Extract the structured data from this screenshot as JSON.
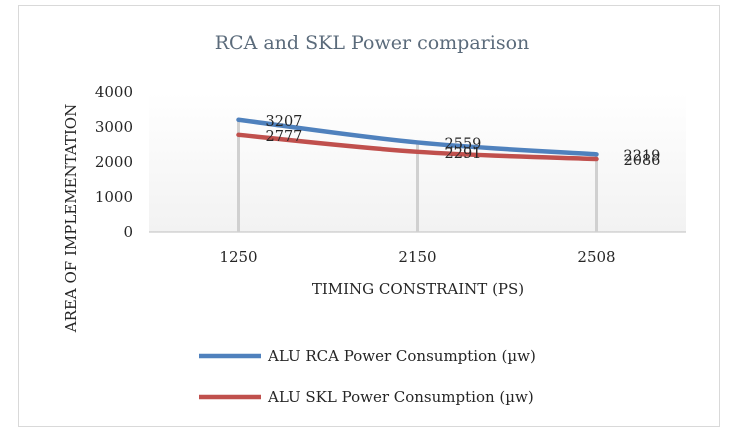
{
  "chart_data": {
    "type": "line",
    "title": "RCA and SKL Power comparison",
    "xlabel": "TIMING CONSTRAINT (PS)",
    "ylabel": "AREA OF IMPLEMENTATION",
    "categories": [
      "1250",
      "2150",
      "2508"
    ],
    "yticks": [
      "0",
      "1000",
      "2000",
      "3000",
      "4000"
    ],
    "ylim": [
      0,
      4000
    ],
    "grid": true,
    "legend_position": "bottom",
    "series": [
      {
        "name": "ALU RCA Power Consumption (µw)",
        "values": [
          3207,
          2559,
          2219
        ],
        "labels": [
          "3207",
          "2559",
          "2219"
        ],
        "color": "#4f81bd"
      },
      {
        "name": "ALU SKL Power Consumption (µw)",
        "values": [
          2777,
          2291,
          2086
        ],
        "labels": [
          "2777",
          "2291",
          "2086"
        ],
        "color": "#c0504d"
      }
    ]
  }
}
